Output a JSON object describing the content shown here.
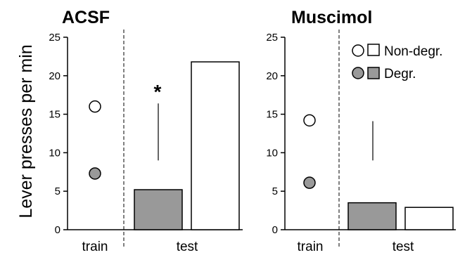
{
  "ylabel": "Lever presses per min",
  "colors": {
    "degraded": "#999999",
    "non_degraded": "#ffffff",
    "stroke": "#000000"
  },
  "legend": [
    {
      "label": "Non-degr.",
      "fill": "#ffffff"
    },
    {
      "label": "Degr.",
      "fill": "#999999"
    }
  ],
  "chart_data": [
    {
      "type": "scatter+bar",
      "title": "ACSF",
      "ylim": [
        0,
        25
      ],
      "yticks": [
        0,
        5,
        10,
        15,
        20,
        25
      ],
      "categories": [
        "train",
        "test"
      ],
      "series": [
        {
          "name": "Non-degr.",
          "train": 16.0,
          "test": 21.8
        },
        {
          "name": "Degr.",
          "train": 7.3,
          "test": 5.2
        }
      ],
      "significance": "*",
      "error_bar": [
        9.0,
        16.4
      ]
    },
    {
      "type": "scatter+bar",
      "title": "Muscimol",
      "ylim": [
        0,
        25
      ],
      "yticks": [
        0,
        5,
        10,
        15,
        20,
        25
      ],
      "categories": [
        "train",
        "test"
      ],
      "series": [
        {
          "name": "Non-degr.",
          "train": 14.2,
          "test": 2.9
        },
        {
          "name": "Degr.",
          "train": 6.1,
          "test": 3.5
        }
      ],
      "error_bar": [
        9.0,
        14.1
      ]
    }
  ]
}
